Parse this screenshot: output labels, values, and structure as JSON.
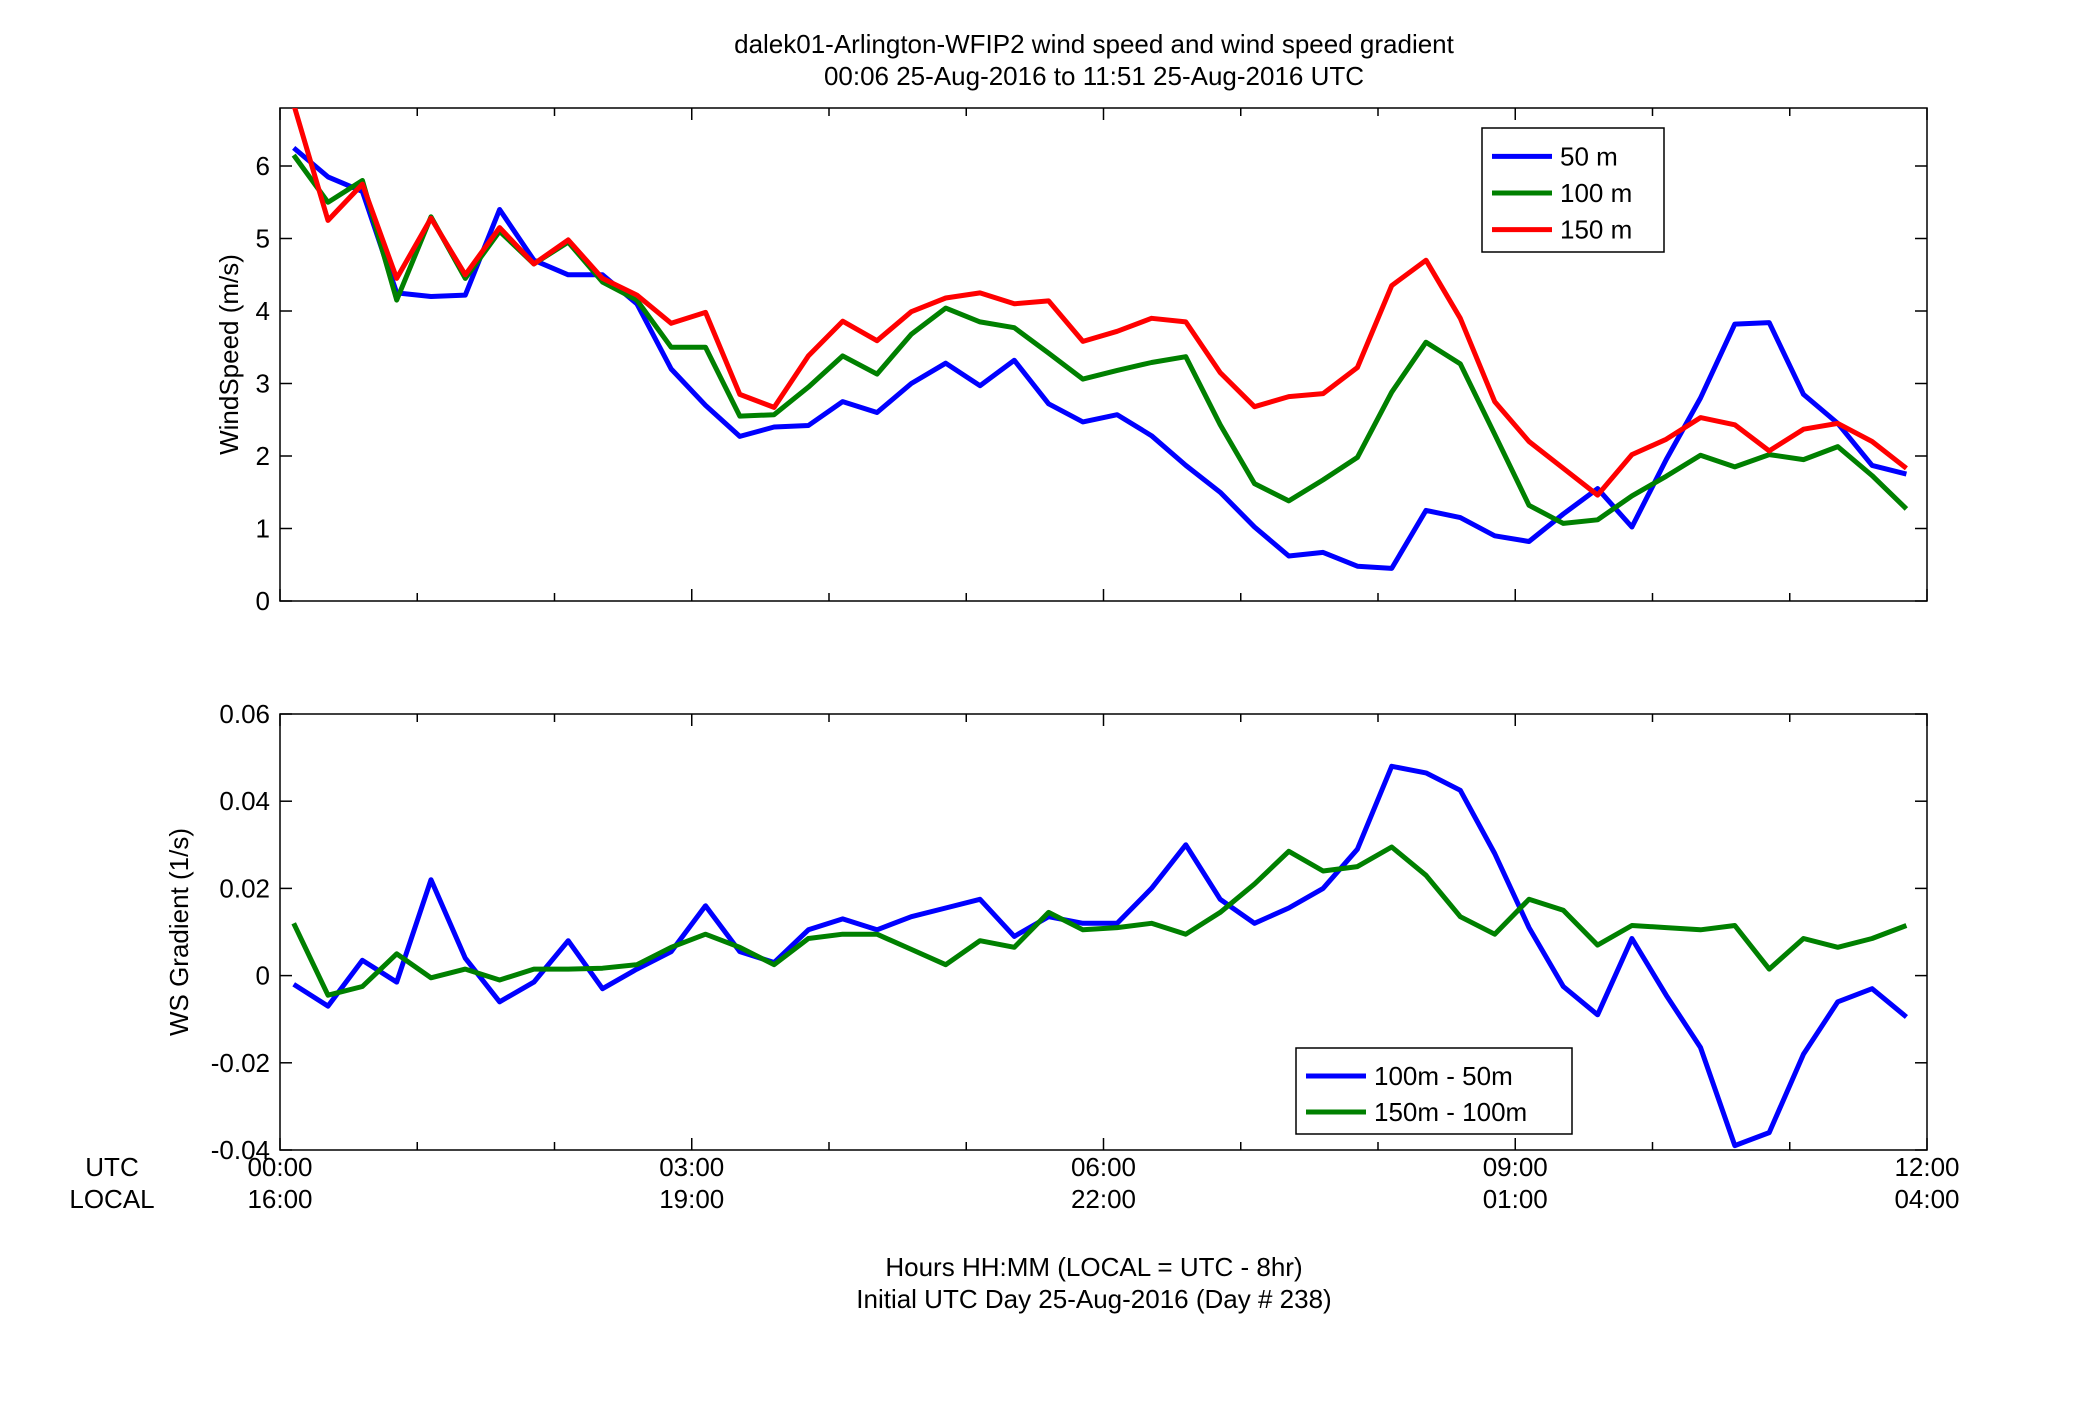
{
  "figure": {
    "title_line1": "dalek01-Arlington-WFIP2  wind speed and wind speed gradient",
    "title_line2": "00:06 25-Aug-2016 to 11:51 25-Aug-2016  UTC",
    "xlabel_line1": "Hours HH:MM  (LOCAL = UTC - 8hr)",
    "xlabel_line2": "Initial UTC Day 25-Aug-2016 (Day # 238)",
    "utc_row_label": "UTC",
    "local_row_label": "LOCAL",
    "x_ticks_utc": [
      "00:00",
      "03:00",
      "06:00",
      "09:00",
      "12:00"
    ],
    "x_ticks_local": [
      "16:00",
      "19:00",
      "22:00",
      "01:00",
      "04:00"
    ]
  },
  "chart_data": [
    {
      "type": "line",
      "ylabel": "WindSpeed (m/s)",
      "xlim": [
        0,
        12
      ],
      "ylim": [
        0,
        6.8
      ],
      "yticks": [
        "0",
        "1",
        "2",
        "3",
        "4",
        "5",
        "6"
      ],
      "legend_placement": "top-right",
      "x": [
        0.1,
        0.35,
        0.6,
        0.85,
        1.1,
        1.35,
        1.6,
        1.85,
        2.1,
        2.35,
        2.6,
        2.85,
        3.1,
        3.35,
        3.6,
        3.85,
        4.1,
        4.35,
        4.6,
        4.85,
        5.1,
        5.35,
        5.6,
        5.85,
        6.1,
        6.35,
        6.6,
        6.85,
        7.1,
        7.35,
        7.6,
        7.85,
        8.1,
        8.35,
        8.6,
        8.85,
        9.1,
        9.35,
        9.6,
        9.85,
        10.1,
        10.35,
        10.6,
        10.85,
        11.1,
        11.35,
        11.6,
        11.85
      ],
      "series": [
        {
          "name": "50 m",
          "color": "#0000ff",
          "values": [
            6.25,
            5.85,
            5.65,
            4.25,
            4.2,
            4.22,
            5.4,
            4.7,
            4.5,
            4.5,
            4.1,
            3.2,
            2.7,
            2.27,
            2.4,
            2.42,
            2.75,
            2.6,
            3.0,
            3.28,
            2.97,
            3.32,
            2.72,
            2.47,
            2.57,
            2.28,
            1.87,
            1.5,
            1.02,
            0.62,
            0.67,
            0.48,
            0.45,
            1.25,
            1.15,
            0.9,
            0.82,
            1.2,
            1.55,
            1.02,
            1.95,
            2.8,
            3.82,
            3.84,
            2.85,
            2.45,
            1.87,
            1.75
          ]
        },
        {
          "name": "100 m",
          "color": "#008000",
          "values": [
            6.15,
            5.5,
            5.8,
            4.15,
            5.3,
            4.45,
            5.1,
            4.65,
            4.95,
            4.4,
            4.15,
            3.5,
            3.5,
            2.55,
            2.57,
            2.95,
            3.38,
            3.13,
            3.68,
            4.04,
            3.85,
            3.77,
            3.42,
            3.06,
            3.18,
            3.29,
            3.37,
            2.43,
            1.62,
            1.38,
            1.67,
            1.98,
            2.88,
            3.57,
            3.27,
            2.3,
            1.32,
            1.07,
            1.12,
            1.45,
            1.72,
            2.01,
            1.85,
            2.02,
            1.95,
            2.13,
            1.73,
            1.27
          ]
        },
        {
          "name": "150 m",
          "color": "#ff0000",
          "values": [
            6.85,
            5.25,
            5.75,
            4.45,
            5.28,
            4.5,
            5.15,
            4.65,
            4.98,
            4.45,
            4.22,
            3.83,
            3.98,
            2.85,
            2.67,
            3.38,
            3.86,
            3.59,
            3.99,
            4.18,
            4.25,
            4.1,
            4.14,
            3.58,
            3.72,
            3.9,
            3.85,
            3.15,
            2.68,
            2.82,
            2.86,
            3.22,
            4.35,
            4.7,
            3.9,
            2.75,
            2.2,
            1.83,
            1.46,
            2.02,
            2.23,
            2.53,
            2.43,
            2.07,
            2.37,
            2.45,
            2.2,
            1.83
          ]
        }
      ]
    },
    {
      "type": "line",
      "ylabel": "WS Gradient (1/s)",
      "xlim": [
        0,
        12
      ],
      "ylim": [
        -0.04,
        0.06
      ],
      "yticks": [
        "-0.04",
        "-0.02",
        "0",
        "0.02",
        "0.04",
        "0.06"
      ],
      "legend_placement": "bottom-right",
      "x": [
        0.1,
        0.35,
        0.6,
        0.85,
        1.1,
        1.35,
        1.6,
        1.85,
        2.1,
        2.35,
        2.6,
        2.85,
        3.1,
        3.35,
        3.6,
        3.85,
        4.1,
        4.35,
        4.6,
        4.85,
        5.1,
        5.35,
        5.6,
        5.85,
        6.1,
        6.35,
        6.6,
        6.85,
        7.1,
        7.35,
        7.6,
        7.85,
        8.1,
        8.35,
        8.6,
        8.85,
        9.1,
        9.35,
        9.6,
        9.85,
        10.1,
        10.35,
        10.6,
        10.85,
        11.1,
        11.35,
        11.6,
        11.85
      ],
      "series": [
        {
          "name": "100m - 50m",
          "color": "#0000ff",
          "values": [
            -0.002,
            -0.007,
            0.0035,
            -0.0015,
            0.022,
            0.004,
            -0.006,
            -0.0015,
            0.008,
            -0.003,
            0.0015,
            0.0055,
            0.016,
            0.0055,
            0.003,
            0.0105,
            0.013,
            0.0105,
            0.0135,
            0.0155,
            0.0175,
            0.009,
            0.0135,
            0.012,
            0.012,
            0.02,
            0.03,
            0.0175,
            0.012,
            0.0155,
            0.02,
            0.029,
            0.048,
            0.0465,
            0.0425,
            0.028,
            0.011,
            -0.0025,
            -0.009,
            0.0085,
            -0.0045,
            -0.0165,
            -0.039,
            -0.036,
            -0.018,
            -0.006,
            -0.003,
            -0.0095
          ]
        },
        {
          "name": "150m - 100m",
          "color": "#008000",
          "values": [
            0.012,
            -0.0045,
            -0.0025,
            0.005,
            -0.0005,
            0.0015,
            -0.001,
            0.0015,
            0.0015,
            0.0017,
            0.0025,
            0.0065,
            0.0095,
            0.0065,
            0.0025,
            0.0085,
            0.0095,
            0.0095,
            0.006,
            0.0025,
            0.008,
            0.0065,
            0.0145,
            0.0105,
            0.011,
            0.012,
            0.0095,
            0.0145,
            0.021,
            0.0285,
            0.024,
            0.025,
            0.0295,
            0.023,
            0.0135,
            0.0095,
            0.0175,
            0.015,
            0.007,
            0.0115,
            0.011,
            0.0105,
            0.0115,
            0.0015,
            0.0085,
            0.0065,
            0.0085,
            0.0115
          ]
        }
      ]
    }
  ]
}
